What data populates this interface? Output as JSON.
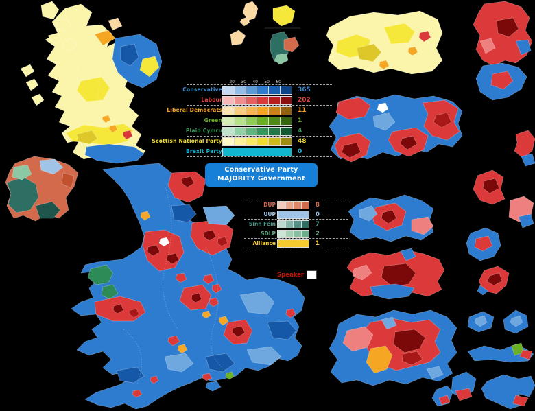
{
  "gov_box": {
    "line1": "Conservative Party",
    "line2": "MAJORITY Government",
    "bg": "#1680D8",
    "text_color": "#FFFFFF"
  },
  "legend_gb": {
    "ticks": [
      "20",
      "30",
      "40",
      "50",
      "60"
    ],
    "parties": [
      {
        "id": "con",
        "name": "Conservative",
        "seats": "365",
        "label_color": "#3C8BD8",
        "shades": [
          "#C3DAF2",
          "#93BCE6",
          "#5B9BD8",
          "#2E7CD0",
          "#1A5FB0",
          "#0D4488"
        ]
      },
      {
        "id": "lab",
        "name": "Labour",
        "seats": "202",
        "label_color": "#E04545",
        "shades": [
          "#F6B8B8",
          "#EF8C8C",
          "#E66060",
          "#DC3A3A",
          "#B81E1E",
          "#8B0F0F"
        ]
      },
      {
        "id": "ld",
        "name": "Liberal Democrats",
        "seats": "11",
        "label_color": "#F5A623",
        "shades": [
          "#FCE3B8",
          "#F9CC84",
          "#F7B655",
          "#F5A623",
          "#C98218",
          "#94600F"
        ]
      },
      {
        "id": "green",
        "name": "Green",
        "seats": "1",
        "label_color": "#6AB023",
        "shades": [
          "#D4EDB4",
          "#B5E18A",
          "#8FCC55",
          "#6AB023",
          "#4E8A17",
          "#35650D"
        ]
      },
      {
        "id": "pc",
        "name": "Plaid Cymru",
        "seats": "4",
        "label_color": "#3A9A5C",
        "shades": [
          "#BFE4CB",
          "#8FD0A5",
          "#5CB67E",
          "#33985C",
          "#1F7846",
          "#115A33"
        ]
      },
      {
        "id": "snp",
        "name": "Scottish National Party",
        "seats": "48",
        "label_color": "#F0DC2E",
        "shades": [
          "#FDF9C9",
          "#FBF29B",
          "#F8EA64",
          "#F0DC2E",
          "#CDB91D",
          "#9C8C12"
        ]
      },
      {
        "id": "brexit",
        "name": "Brexit Party",
        "seats": "0",
        "label_color": "#12B6CF",
        "solid": "#12B6CF"
      }
    ]
  },
  "legend_ni": {
    "parties": [
      {
        "id": "dup",
        "name": "DUP",
        "seats": "8",
        "label_color": "#D46A4C",
        "shades": [
          "#F1CBBC",
          "#E8A78D",
          "#DE8869",
          "#D46A4C"
        ]
      },
      {
        "id": "uup",
        "name": "UUP",
        "seats": "0",
        "label_color": "#9FC4E8",
        "solid": "#9FC4E8"
      },
      {
        "id": "sf",
        "name": "Sinn Féin",
        "seats": "7",
        "label_color": "#4D9A8C",
        "shades": [
          "#BCD8D1",
          "#83B5AA",
          "#559087",
          "#2E6F63"
        ]
      },
      {
        "id": "sdlp",
        "name": "SDLP",
        "seats": "2",
        "label_color": "#6DAE8A",
        "shades": [
          "#CBE6D6",
          "#A3D2B6",
          "#86C0A0",
          "#6DAE8A"
        ]
      },
      {
        "id": "alliance",
        "name": "Alliance",
        "seats": "1",
        "label_color": "#F6CB2F",
        "solid": "#F6CB2F"
      }
    ]
  },
  "speaker": {
    "label": "Speaker",
    "swatch": "#FFFFFF",
    "label_color": "#C21807"
  },
  "colors": {
    "con_pale": "#BFD9F2",
    "con_light": "#6FA8DE",
    "con": "#2E7CD0",
    "con_dark": "#1658A8",
    "con_darker": "#0C3E7E",
    "lab_light": "#EE8080",
    "lab": "#DC3A3A",
    "lab_dark": "#A81818",
    "lab_darker": "#7C0909",
    "ld_pale": "#FAD9A3",
    "ld": "#F5A623",
    "snp_pale": "#FBF5AC",
    "snp": "#F6E83B",
    "snp_dark": "#DEC729",
    "green": "#6AB023",
    "pc": "#2C8B57",
    "dup": "#D46A4C",
    "dup_dark": "#C2522E",
    "uup": "#9FC4E8",
    "sf": "#2E6F63",
    "sf_dark": "#20554B",
    "sdlp": "#8CC8A3",
    "alliance": "#F6CB2F",
    "white": "#FFFFFF"
  }
}
